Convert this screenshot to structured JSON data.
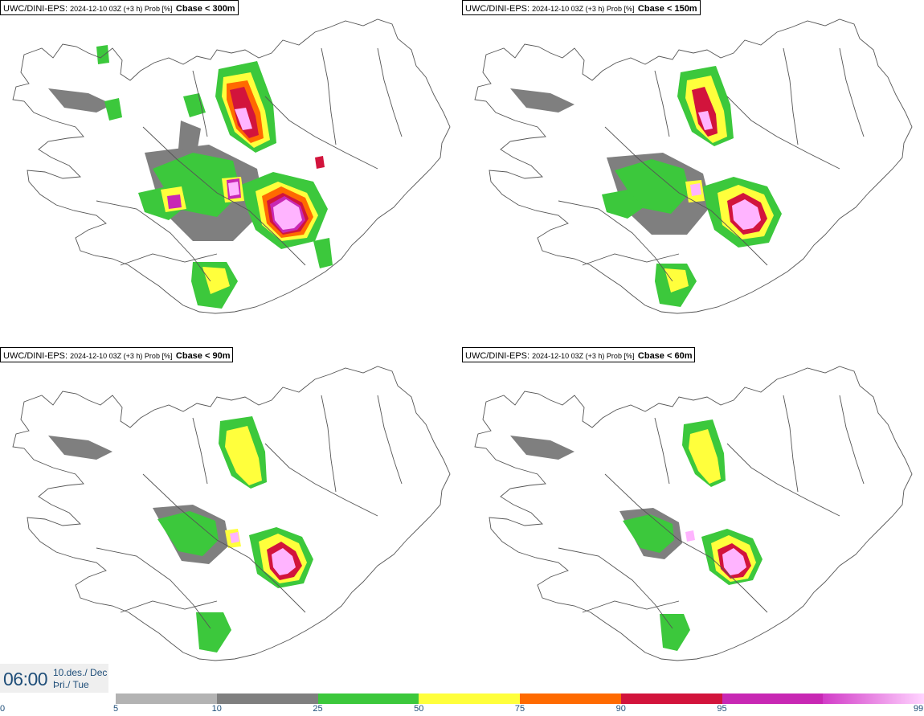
{
  "panels": [
    {
      "model": "UWC/DINI-EPS",
      "run": "2024-12-10 03Z (+3 h) Prob [%]",
      "threshold": "Cbase < 300m"
    },
    {
      "model": "UWC/DINI-EPS",
      "run": "2024-12-10 03Z (+3 h) Prob [%]",
      "threshold": "Cbase < 150m"
    },
    {
      "model": "UWC/DINI-EPS",
      "run": "2024-12-10 03Z (+3 h) Prob [%]",
      "threshold": "Cbase < 90m"
    },
    {
      "model": "UWC/DINI-EPS",
      "run": "2024-12-10 03Z (+3 h) Prob [%]",
      "threshold": "Cbase < 60m"
    }
  ],
  "valid_time": {
    "time": "06:00",
    "date": "10.des./ Dec",
    "weekday": "Þri./ Tue"
  },
  "colorbar": {
    "labels": [
      "0",
      "5",
      "10",
      "25",
      "50",
      "75",
      "90",
      "95",
      "99"
    ],
    "colors": [
      "#ffffff",
      "#b3b3b3",
      "#7f7f7f",
      "#3cc83c",
      "#ffff3c",
      "#ff6a00",
      "#d2143c",
      "#c828b4",
      "#ffb4ff"
    ]
  }
}
